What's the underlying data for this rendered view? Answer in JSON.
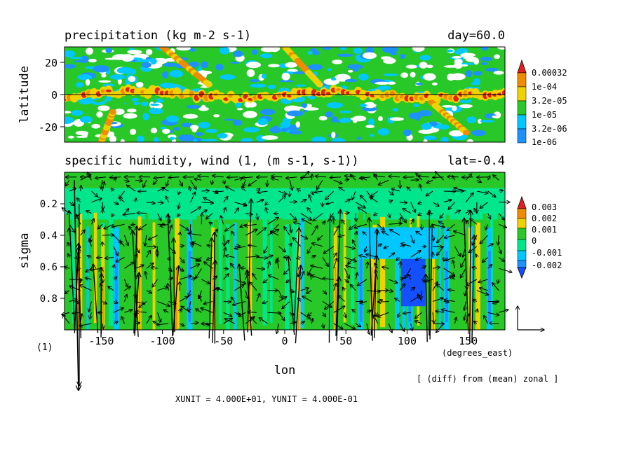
{
  "chart_data": [
    {
      "type": "heatmap",
      "title": "precipitation (kg m-2 s-1)",
      "title_right": "day=60.0",
      "ylabel": "latitude",
      "ylim": [
        -30,
        30
      ],
      "xlim": [
        -180,
        180
      ],
      "yticks": [
        20,
        0,
        -20
      ],
      "ytick_labels": [
        "20",
        "0",
        "-20"
      ],
      "colorbar": {
        "labels": [
          "0.00032",
          "1e-04",
          "3.2e-05",
          "1e-05",
          "3.2e-06",
          "1e-06"
        ],
        "colors": [
          "#ffffff",
          "#1e90ff",
          "#00c8ff",
          "#28c828",
          "#f0d200",
          "#f08c00",
          "#e61e1e"
        ]
      },
      "bands": [
        {
          "y": 0,
          "level": 5,
          "width": 6
        },
        {
          "x": -80,
          "y": 16,
          "level": 4,
          "width": 5
        },
        {
          "x": 20,
          "y": 22,
          "level": 4,
          "width": 5
        },
        {
          "x": 145,
          "y": -3,
          "level": 5,
          "width": 6
        }
      ]
    },
    {
      "type": "heatmap",
      "title": "specific humidity, wind (1, (m s-1, s-1))",
      "title_right": "lat=-0.4",
      "xlabel": "lon",
      "ylabel": "sigma",
      "xlim": [
        -180,
        180
      ],
      "ylim": [
        0,
        1
      ],
      "xticks": [
        -150,
        -100,
        -50,
        0,
        50,
        100,
        150
      ],
      "xtick_labels": [
        "-150",
        "-100",
        "-50",
        "0",
        "50",
        "100",
        "150"
      ],
      "yticks": [
        0.2,
        0.4,
        0.6,
        0.8
      ],
      "ytick_labels": [
        "0.2",
        "0.4",
        "0.6",
        "0.8"
      ],
      "x_unit_label": "(degrees_east)",
      "vector_ref_label": "(1)",
      "colorbar": {
        "labels": [
          "0.003",
          "0.002",
          "0.001",
          "0",
          "-0.001",
          "-0.002"
        ],
        "colors": [
          "#1450ff",
          "#1e90ff",
          "#00c8ff",
          "#00e68c",
          "#28c828",
          "#f0d200",
          "#f08c00",
          "#e61e1e"
        ]
      },
      "note": "[ (diff) from (mean) zonal ]",
      "units_text": "XUNIT = 4.000E+01, YUNIT = 4.000E-01",
      "moist_columns_lon": [
        -170,
        -150,
        -120,
        -90,
        -60,
        -30,
        10,
        40,
        70,
        120,
        150
      ],
      "dry_columns_lon": [
        -140,
        -80,
        60,
        100,
        130,
        165
      ]
    }
  ]
}
